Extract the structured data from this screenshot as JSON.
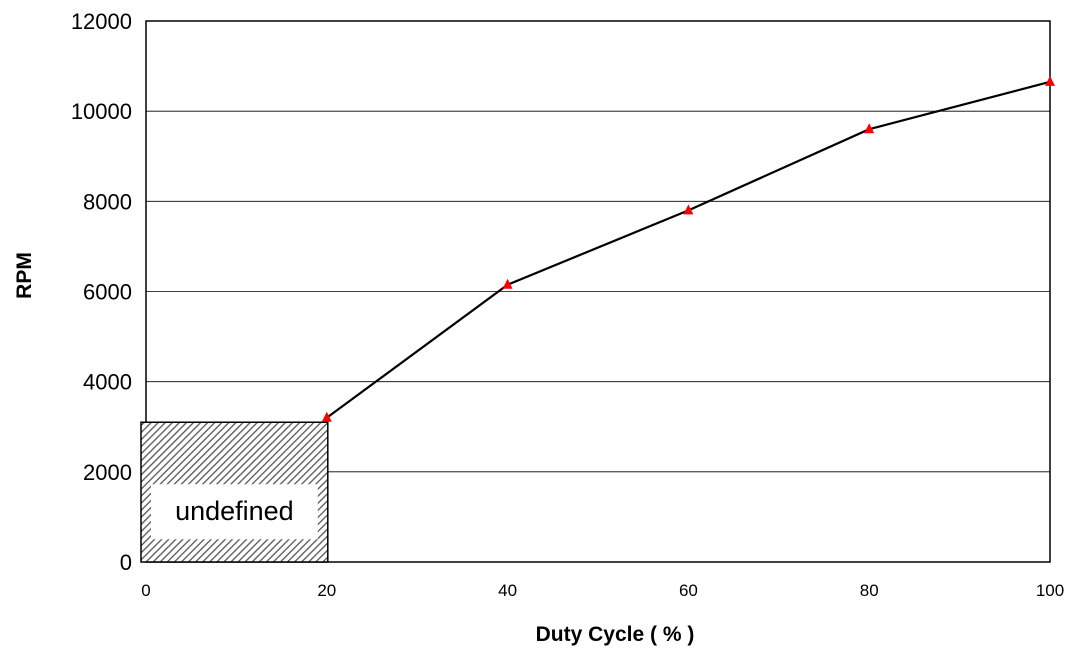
{
  "chart_data": {
    "type": "line",
    "title": "",
    "xlabel": "Duty Cycle ( % )",
    "ylabel": "RPM",
    "xlim": [
      0,
      100
    ],
    "ylim": [
      0,
      12000
    ],
    "x_ticks": [
      0,
      20,
      40,
      60,
      80,
      100
    ],
    "y_ticks": [
      0,
      2000,
      4000,
      6000,
      8000,
      10000,
      12000
    ],
    "grid": "horizontal",
    "series": [
      {
        "x": [
          20,
          40,
          60,
          80,
          100
        ],
        "y": [
          3200,
          6150,
          7800,
          9600,
          10650
        ],
        "line_color": "#000000",
        "marker": "triangle",
        "marker_color": "#ff0000"
      }
    ],
    "annotations": [
      {
        "text": "undefined",
        "x_range": [
          0,
          20
        ],
        "y_range": [
          0,
          3100
        ],
        "style": "hatched"
      }
    ]
  }
}
